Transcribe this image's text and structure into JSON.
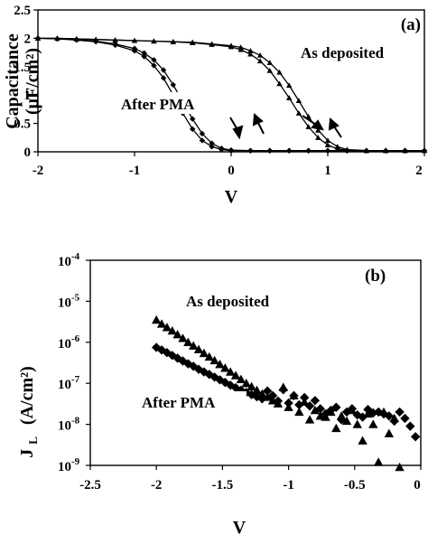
{
  "chart_data": [
    {
      "type": "line",
      "panel_label": "(a)",
      "xlabel": "V",
      "ylabel": "Capacitance",
      "ylabel_unit": "(μF/cm²)",
      "xlim": [
        -2,
        2
      ],
      "ylim": [
        0,
        2.5
      ],
      "x_ticks": [
        "-2",
        "-1",
        "0",
        "1",
        "2"
      ],
      "y_ticks": [
        "0",
        "0.5",
        "1",
        "1.5",
        "2",
        "2.5"
      ],
      "grid": false,
      "annotations": [
        "As deposited",
        "After PMA"
      ],
      "series": [
        {
          "name": "As deposited",
          "marker": "triangle",
          "sweeps": [
            {
              "x": [
                -2.0,
                -1.8,
                -1.6,
                -1.4,
                -1.2,
                -1.0,
                -0.8,
                -0.6,
                -0.4,
                -0.2,
                0.0,
                0.1,
                0.2,
                0.3,
                0.4,
                0.5,
                0.6,
                0.7,
                0.8,
                0.9,
                1.0,
                1.1,
                1.2,
                1.4,
                1.6,
                1.8,
                2.0
              ],
              "y": [
                2.0,
                2.0,
                1.99,
                1.98,
                1.97,
                1.96,
                1.95,
                1.94,
                1.92,
                1.89,
                1.85,
                1.8,
                1.72,
                1.6,
                1.43,
                1.2,
                0.95,
                0.68,
                0.44,
                0.25,
                0.12,
                0.05,
                0.03,
                0.02,
                0.02,
                0.02,
                0.02
              ]
            },
            {
              "x": [
                -2.0,
                -1.8,
                -1.6,
                -1.4,
                -1.2,
                -1.0,
                -0.8,
                -0.6,
                -0.4,
                -0.2,
                0.0,
                0.1,
                0.2,
                0.3,
                0.4,
                0.5,
                0.6,
                0.7,
                0.8,
                0.9,
                1.0,
                1.1,
                1.2,
                1.4,
                1.6,
                1.8,
                2.0
              ],
              "y": [
                2.0,
                2.0,
                1.99,
                1.98,
                1.97,
                1.96,
                1.95,
                1.94,
                1.93,
                1.9,
                1.87,
                1.84,
                1.78,
                1.7,
                1.57,
                1.4,
                1.17,
                0.9,
                0.62,
                0.38,
                0.2,
                0.09,
                0.04,
                0.02,
                0.02,
                0.02,
                0.02
              ]
            }
          ]
        },
        {
          "name": "After PMA",
          "marker": "diamond",
          "sweeps": [
            {
              "x": [
                -2.0,
                -1.8,
                -1.6,
                -1.4,
                -1.2,
                -1.0,
                -0.9,
                -0.8,
                -0.7,
                -0.6,
                -0.5,
                -0.4,
                -0.3,
                -0.2,
                -0.1,
                0.0,
                0.2,
                0.4,
                0.6,
                0.8,
                1.0,
                1.2,
                1.4,
                1.6,
                1.8,
                2.0
              ],
              "y": [
                2.0,
                1.99,
                1.97,
                1.94,
                1.88,
                1.78,
                1.68,
                1.52,
                1.3,
                1.0,
                0.68,
                0.4,
                0.2,
                0.09,
                0.04,
                0.02,
                0.02,
                0.02,
                0.02,
                0.02,
                0.02,
                0.02,
                0.02,
                0.02,
                0.02,
                0.02
              ]
            },
            {
              "x": [
                -2.0,
                -1.8,
                -1.6,
                -1.4,
                -1.2,
                -1.0,
                -0.9,
                -0.8,
                -0.7,
                -0.6,
                -0.5,
                -0.4,
                -0.3,
                -0.2,
                -0.1,
                0.0,
                0.2,
                0.4,
                0.6,
                0.8,
                1.0,
                1.2,
                1.4,
                1.6,
                1.8,
                2.0
              ],
              "y": [
                2.0,
                1.99,
                1.98,
                1.95,
                1.9,
                1.82,
                1.74,
                1.62,
                1.44,
                1.18,
                0.88,
                0.58,
                0.32,
                0.15,
                0.06,
                0.03,
                0.02,
                0.02,
                0.02,
                0.02,
                0.02,
                0.02,
                0.02,
                0.02,
                0.02,
                0.02
              ]
            }
          ]
        }
      ]
    },
    {
      "type": "scatter",
      "panel_label": "(b)",
      "xlabel": "V",
      "ylabel": "J",
      "ylabel_sub": "L",
      "ylabel_unit": "(A/cm²)",
      "xlim": [
        -2.5,
        0
      ],
      "ylim": [
        1e-09,
        0.0001
      ],
      "y_scale": "log",
      "x_ticks": [
        "-2.5",
        "-2",
        "-1.5",
        "-1",
        "-0.5",
        "0"
      ],
      "y_tick_exponents": [
        "-9",
        "-8",
        "-7",
        "-6",
        "-5",
        "-4"
      ],
      "y_tick_base": "10",
      "grid": false,
      "annotations": [
        "As deposited",
        "After PMA"
      ],
      "series": [
        {
          "name": "As deposited",
          "marker": "triangle",
          "x": [
            -2.0,
            -1.96,
            -1.92,
            -1.88,
            -1.84,
            -1.8,
            -1.76,
            -1.72,
            -1.68,
            -1.64,
            -1.6,
            -1.56,
            -1.52,
            -1.48,
            -1.44,
            -1.4,
            -1.36,
            -1.32,
            -1.28,
            -1.24,
            -1.2,
            -1.16,
            -1.12,
            -1.08,
            -1.04,
            -1.0,
            -0.96,
            -0.92,
            -0.88,
            -0.84,
            -0.8,
            -0.76,
            -0.72,
            -0.68,
            -0.64,
            -0.6,
            -0.56,
            -0.52,
            -0.48,
            -0.44,
            -0.4,
            -0.36,
            -0.32,
            -0.28,
            -0.24,
            -0.2,
            -0.16
          ],
          "y": [
            3.5e-06,
            2.8e-06,
            2.3e-06,
            1.9e-06,
            1.55e-06,
            1.25e-06,
            1e-06,
            8.2e-07,
            6.7e-07,
            5.4e-07,
            4.4e-07,
            3.6e-07,
            2.9e-07,
            2.35e-07,
            1.9e-07,
            1.55e-07,
            1.25e-07,
            1e-07,
            8.3e-08,
            6.8e-08,
            5.5e-08,
            4.6e-08,
            3.8e-08,
            3.2e-08,
            8e-08,
            2.6e-08,
            5e-08,
            2e-08,
            3.5e-08,
            1.3e-08,
            2.2e-08,
            1.6e-08,
            1.5e-08,
            2e-08,
            8e-09,
            1.6e-08,
            1.2e-08,
            2.2e-08,
            1e-08,
            4e-09,
            1.8e-08,
            1e-08,
            1.2e-09,
            2e-08,
            6e-09,
            1.4e-08,
            9e-10
          ]
        },
        {
          "name": "After PMA",
          "marker": "diamond",
          "x": [
            -2.0,
            -1.96,
            -1.92,
            -1.88,
            -1.84,
            -1.8,
            -1.76,
            -1.72,
            -1.68,
            -1.64,
            -1.6,
            -1.56,
            -1.52,
            -1.48,
            -1.44,
            -1.4,
            -1.36,
            -1.32,
            -1.28,
            -1.24,
            -1.2,
            -1.16,
            -1.12,
            -1.08,
            -1.04,
            -1.0,
            -0.96,
            -0.92,
            -0.88,
            -0.84,
            -0.8,
            -0.76,
            -0.72,
            -0.68,
            -0.64,
            -0.6,
            -0.56,
            -0.52,
            -0.48,
            -0.44,
            -0.4,
            -0.36,
            -0.32,
            -0.28,
            -0.24,
            -0.2,
            -0.16,
            -0.12,
            -0.08,
            -0.04
          ],
          "y": [
            7.5e-07,
            6.5e-07,
            5.6e-07,
            4.8e-07,
            4.1e-07,
            3.5e-07,
            3e-07,
            2.6e-07,
            2.2e-07,
            1.9e-07,
            1.65e-07,
            1.42e-07,
            1.22e-07,
            1.05e-07,
            9e-08,
            7.8e-08,
            6.8e-08,
            6e-08,
            5.3e-08,
            4.7e-08,
            4.2e-08,
            6.5e-08,
            5e-08,
            3.7e-08,
            7e-08,
            3.3e-08,
            5e-08,
            3e-08,
            4.5e-08,
            2.8e-08,
            3.8e-08,
            2.4e-08,
            1.8e-08,
            2.2e-08,
            2.6e-08,
            1.3e-08,
            2e-08,
            2.4e-08,
            1.7e-08,
            1.5e-08,
            2.3e-08,
            1.9e-08,
            2e-08,
            1.8e-08,
            1.6e-08,
            1.2e-08,
            2e-08,
            1.4e-08,
            9e-09,
            5e-09
          ]
        }
      ]
    }
  ]
}
